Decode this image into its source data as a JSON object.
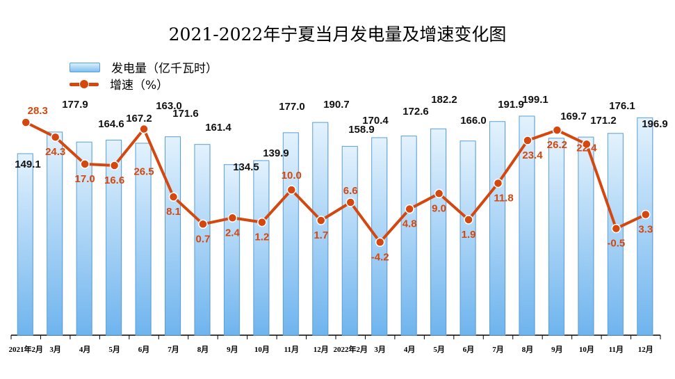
{
  "chart_data": {
    "type": "bar+line",
    "title": "2021-2022年宁夏当月发电量及增速变化图",
    "categories": [
      "2021年2月",
      "3月",
      "4月",
      "5月",
      "6月",
      "7月",
      "8月",
      "9月",
      "10月",
      "11月",
      "12月",
      "2022年2月",
      "3月",
      "4月",
      "5月",
      "6月",
      "7月",
      "8月",
      "9月",
      "10月",
      "11月",
      "12月"
    ],
    "series": [
      {
        "name": "发电量（亿千瓦时）",
        "type": "bar",
        "color": "#7fbff0",
        "values": [
          149.1,
          177.9,
          164.6,
          167.2,
          163.0,
          171.6,
          161.4,
          134.5,
          139.9,
          177.0,
          190.7,
          158.9,
          170.4,
          172.6,
          182.2,
          166.0,
          191.9,
          199.1,
          169.7,
          171.2,
          176.1,
          196.9
        ]
      },
      {
        "name": "增速（%）",
        "type": "line",
        "color": "#d4470f",
        "values": [
          28.3,
          24.3,
          17.0,
          16.6,
          26.5,
          8.1,
          0.7,
          2.4,
          1.2,
          10.0,
          1.7,
          6.6,
          -4.2,
          4.8,
          9.0,
          1.9,
          11.8,
          23.4,
          26.2,
          22.4,
          -0.5,
          3.3
        ]
      }
    ],
    "legend": "top-left",
    "grid": false
  }
}
